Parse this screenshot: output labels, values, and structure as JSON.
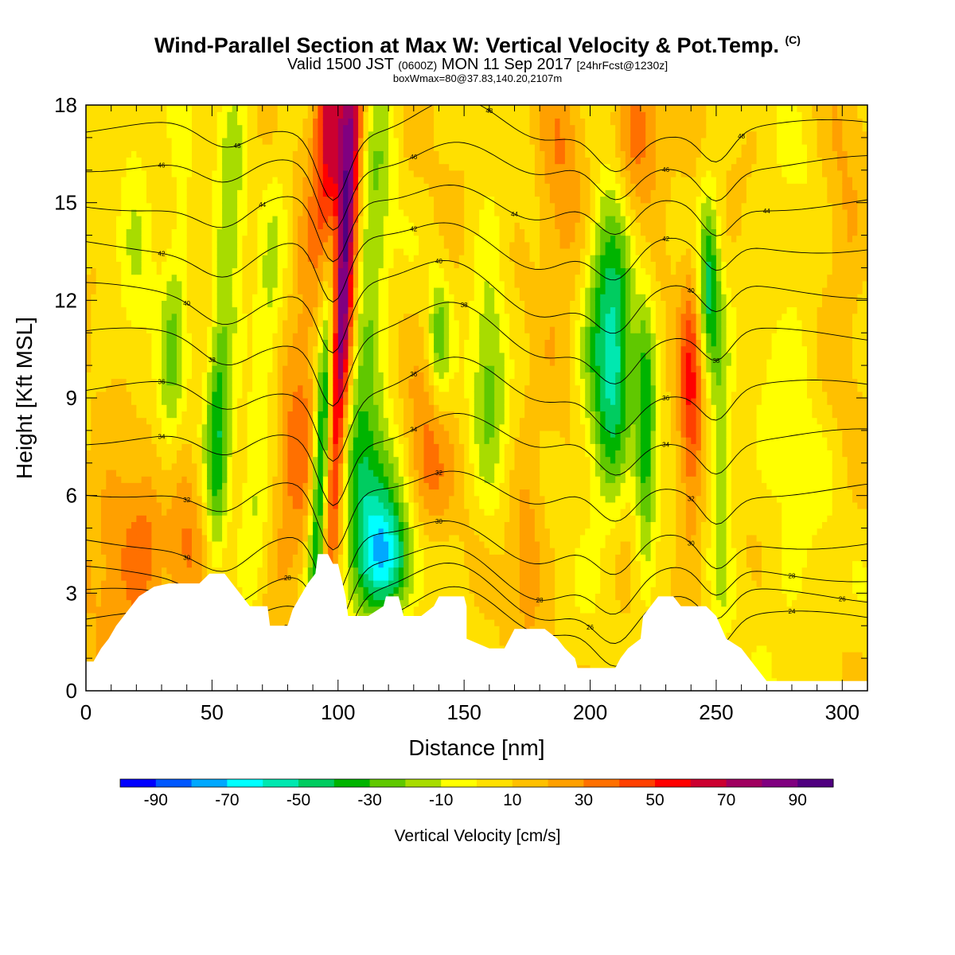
{
  "header": {
    "title_main": "Wind-Parallel Section at Max W: Vertical Velocity & Pot.Temp.",
    "title_copyright": "(C)",
    "valid_prefix": "Valid 1500 JST",
    "valid_utc": "(0600Z)",
    "valid_date": "MON 11 Sep 2017",
    "forecast": "[24hrFcst@1230z]",
    "box_info": "boxWmax=80@37.83,140.20,2107m"
  },
  "chart_data": {
    "type": "heatmap",
    "xlabel": "Distance [nm]",
    "ylabel": "Height [Kft MSL]",
    "xlim": [
      0,
      310
    ],
    "ylim": [
      0,
      18
    ],
    "x_ticks": [
      0,
      50,
      100,
      150,
      200,
      250,
      300
    ],
    "y_ticks": [
      0,
      3,
      6,
      9,
      12,
      15,
      18
    ],
    "colorbar": {
      "title": "Vertical Velocity [cm/s]",
      "labels": [
        "-90",
        "-70",
        "-50",
        "-30",
        "-10",
        "10",
        "30",
        "50",
        "70",
        "90"
      ],
      "levels": [
        -100,
        -90,
        -80,
        -70,
        -60,
        -50,
        -40,
        -30,
        -20,
        -10,
        0,
        10,
        20,
        30,
        40,
        50,
        60,
        70,
        80,
        90,
        100
      ],
      "colors": [
        "#0000ff",
        "#0058ff",
        "#00a8ff",
        "#00ffff",
        "#00e8b0",
        "#00cc60",
        "#00b400",
        "#60c800",
        "#a8dc00",
        "#ffff00",
        "#ffe000",
        "#ffc000",
        "#ffa000",
        "#ff7000",
        "#ff4000",
        "#ff0000",
        "#cc0030",
        "#a00060",
        "#800080",
        "#500080"
      ]
    },
    "terrain": [
      [
        0,
        0.9
      ],
      [
        3,
        0.9
      ],
      [
        6,
        1.3
      ],
      [
        9,
        1.6
      ],
      [
        12,
        2.0
      ],
      [
        15,
        2.3
      ],
      [
        18,
        2.6
      ],
      [
        21,
        2.9
      ],
      [
        27,
        3.2
      ],
      [
        33,
        3.3
      ],
      [
        45,
        3.3
      ],
      [
        49,
        3.6
      ],
      [
        55,
        3.6
      ],
      [
        58,
        3.3
      ],
      [
        61,
        3.0
      ],
      [
        65,
        2.6
      ],
      [
        72,
        2.6
      ],
      [
        73,
        2.0
      ],
      [
        80,
        2.0
      ],
      [
        82,
        2.5
      ],
      [
        85,
        2.9
      ],
      [
        88,
        3.3
      ],
      [
        91,
        3.6
      ],
      [
        92,
        4.2
      ],
      [
        96,
        4.2
      ],
      [
        98,
        3.9
      ],
      [
        100,
        3.9
      ],
      [
        103,
        2.9
      ],
      [
        104,
        2.3
      ],
      [
        112,
        2.3
      ],
      [
        118,
        2.6
      ],
      [
        119,
        2.9
      ],
      [
        124,
        2.9
      ],
      [
        126,
        2.3
      ],
      [
        133,
        2.3
      ],
      [
        138,
        2.6
      ],
      [
        140,
        2.9
      ],
      [
        150,
        2.9
      ],
      [
        151,
        2.6
      ],
      [
        151,
        1.6
      ],
      [
        160,
        1.3
      ],
      [
        166,
        1.3
      ],
      [
        168,
        1.6
      ],
      [
        170,
        1.9
      ],
      [
        182,
        1.9
      ],
      [
        187,
        1.6
      ],
      [
        190,
        1.3
      ],
      [
        194,
        1.0
      ],
      [
        195,
        0.7
      ],
      [
        210,
        0.7
      ],
      [
        212,
        1.0
      ],
      [
        215,
        1.3
      ],
      [
        220,
        1.6
      ],
      [
        221,
        2.3
      ],
      [
        224,
        2.6
      ],
      [
        227,
        2.9
      ],
      [
        233,
        2.9
      ],
      [
        236,
        2.6
      ],
      [
        246,
        2.6
      ],
      [
        250,
        2.3
      ],
      [
        254,
        1.6
      ],
      [
        260,
        1.3
      ],
      [
        264,
        0.9
      ],
      [
        268,
        0.5
      ],
      [
        270,
        0.3
      ],
      [
        310,
        0.3
      ]
    ],
    "w_features": [
      {
        "x": 102,
        "y": 12.5,
        "w": 85,
        "sx": 3.2,
        "sy": 6.5,
        "tilt": 0.22
      },
      {
        "x": 97,
        "y": 17.5,
        "w": 60,
        "sx": 4.5,
        "sy": 2.5,
        "tilt": 0
      },
      {
        "x": 94,
        "y": 7.5,
        "w": -72,
        "sx": 2.6,
        "sy": 4.5,
        "tilt": 0.22
      },
      {
        "x": 115,
        "y": 5.5,
        "w": -45,
        "sx": 7,
        "sy": 2.2,
        "tilt": 0.1
      },
      {
        "x": 120,
        "y": 4.0,
        "w": -45,
        "sx": 9,
        "sy": 1.2,
        "tilt": 0
      },
      {
        "x": 112,
        "y": 12,
        "w": -30,
        "sx": 5,
        "sy": 6,
        "tilt": 0.3
      },
      {
        "x": 25,
        "y": 4.2,
        "w": 30,
        "sx": 18,
        "sy": 2.2,
        "tilt": 0
      },
      {
        "x": 52,
        "y": 7.5,
        "w": -45,
        "sx": 3.5,
        "sy": 3.5,
        "tilt": 0.1
      },
      {
        "x": 34,
        "y": 10,
        "w": -25,
        "sx": 4,
        "sy": 5,
        "tilt": 0.2
      },
      {
        "x": 70,
        "y": 9,
        "w": -20,
        "sx": 4,
        "sy": 6,
        "tilt": 0.3
      },
      {
        "x": 85,
        "y": 8.5,
        "w": 25,
        "sx": 6,
        "sy": 4.5,
        "tilt": 0.3
      },
      {
        "x": 135,
        "y": 7,
        "w": 25,
        "sx": 6,
        "sy": 2,
        "tilt": 0
      },
      {
        "x": 160,
        "y": 10,
        "w": -30,
        "sx": 5,
        "sy": 3,
        "tilt": 0
      },
      {
        "x": 140,
        "y": 10.8,
        "w": -30,
        "sx": 3,
        "sy": 1.5,
        "tilt": 0
      },
      {
        "x": 210,
        "y": 10,
        "w": -55,
        "sx": 5,
        "sy": 3,
        "tilt": 0.2
      },
      {
        "x": 222,
        "y": 8,
        "w": -45,
        "sx": 3,
        "sy": 3,
        "tilt": 0
      },
      {
        "x": 205,
        "y": 13,
        "w": -30,
        "sx": 5,
        "sy": 4,
        "tilt": 0.3
      },
      {
        "x": 247,
        "y": 12.5,
        "w": -50,
        "sx": 3,
        "sy": 2,
        "tilt": 0
      },
      {
        "x": 252,
        "y": 7,
        "w": -30,
        "sx": 3,
        "sy": 3,
        "tilt": 0
      },
      {
        "x": 240,
        "y": 9,
        "w": 40,
        "sx": 3.5,
        "sy": 3,
        "tilt": 0
      },
      {
        "x": 218,
        "y": 17,
        "w": 35,
        "sx": 8,
        "sy": 1.8,
        "tilt": 0
      },
      {
        "x": 188,
        "y": 15,
        "w": 20,
        "sx": 6,
        "sy": 3,
        "tilt": 0
      },
      {
        "x": 58,
        "y": 15,
        "w": -20,
        "sx": 4,
        "sy": 4,
        "tilt": 0
      },
      {
        "x": 20,
        "y": 16,
        "w": -15,
        "sx": 5,
        "sy": 5,
        "tilt": 0
      },
      {
        "x": 280,
        "y": 8,
        "w": -12,
        "sx": 10,
        "sy": 6,
        "tilt": 0
      },
      {
        "x": 175,
        "y": 4.5,
        "w": 20,
        "sx": 5,
        "sy": 2,
        "tilt": 0
      },
      {
        "x": 300,
        "y": 14,
        "w": 15,
        "sx": 6,
        "sy": 3,
        "tilt": 0
      }
    ],
    "theta_contours": [
      {
        "v": 24,
        "y": 2.2,
        "pos": 6
      },
      {
        "v": 26,
        "y": 2.9,
        "pos": 8
      },
      {
        "v": 28,
        "y": 3.6,
        "pos": 6
      },
      {
        "v": 30,
        "y": 4.6,
        "pos": 2
      },
      {
        "v": 32,
        "y": 6.2,
        "pos": 2
      },
      {
        "v": 34,
        "y": 7.8,
        "pos": 1
      },
      {
        "v": 36,
        "y": 9.3,
        "pos": 1
      },
      {
        "v": 38,
        "y": 10.9,
        "pos": 3
      },
      {
        "v": 40,
        "y": 12.3,
        "pos": 2
      },
      {
        "v": 42,
        "y": 13.7,
        "pos": 1
      },
      {
        "v": 44,
        "y": 15.0,
        "pos": 5
      },
      {
        "v": 46,
        "y": 16.2,
        "pos": 1
      },
      {
        "v": 48,
        "y": 17.3,
        "pos": 4
      }
    ],
    "theta_perturbations": [
      {
        "x": 98,
        "dy": -2.0,
        "s": 6
      },
      {
        "x": 55,
        "dy": -0.8,
        "s": 10
      },
      {
        "x": 145,
        "dy": 0.8,
        "s": 14
      },
      {
        "x": 210,
        "dy": -1.2,
        "s": 8
      },
      {
        "x": 250,
        "dy": -0.9,
        "s": 6
      },
      {
        "x": 180,
        "dy": -0.6,
        "s": 12
      }
    ]
  }
}
